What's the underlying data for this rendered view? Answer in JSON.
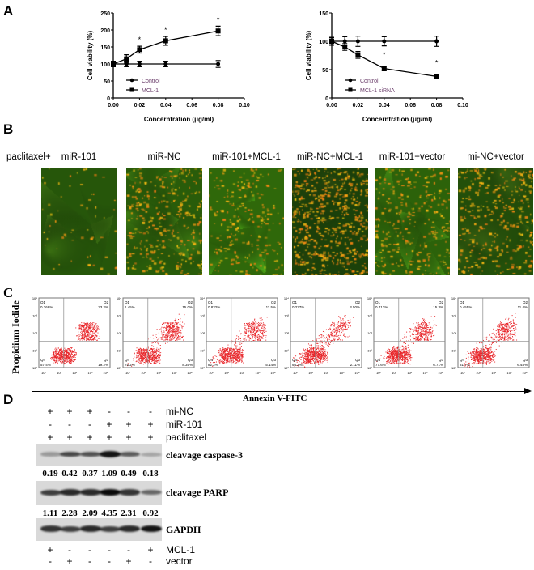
{
  "panels": {
    "a": "A",
    "b": "B",
    "c": "C",
    "d": "D"
  },
  "chart_data": [
    {
      "type": "line",
      "xlabel": "Concerntration (μg/ml)",
      "ylabel": "Cell viability (%)",
      "xlim": [
        0,
        0.1
      ],
      "ylim": [
        0,
        250
      ],
      "xticks": [
        "0.00",
        "0.02",
        "0.04",
        "0.06",
        "0.08",
        "0.10"
      ],
      "yticks": [
        "0",
        "50",
        "100",
        "150",
        "200",
        "250"
      ],
      "x": [
        0,
        0.01,
        0.02,
        0.04,
        0.08
      ],
      "series": [
        {
          "name": "Control",
          "marker": "circle",
          "values": [
            100,
            100,
            100,
            100,
            100
          ],
          "err": [
            8,
            8,
            8,
            8,
            10
          ]
        },
        {
          "name": "MCL-1",
          "marker": "square",
          "values": [
            100,
            115,
            142,
            168,
            197
          ],
          "err": [
            6,
            12,
            10,
            13,
            14
          ]
        }
      ],
      "significance": [
        {
          "x": 0.02,
          "label": "*"
        },
        {
          "x": 0.04,
          "label": "*"
        },
        {
          "x": 0.08,
          "label": "*"
        }
      ],
      "legend": "bottom-left"
    },
    {
      "type": "line",
      "xlabel": "Concerntration (μg/ml)",
      "ylabel": "Cell viability (%)",
      "xlim": [
        0,
        0.1
      ],
      "ylim": [
        0,
        150
      ],
      "xticks": [
        "0.00",
        "0.02",
        "0.04",
        "0.06",
        "0.08",
        "0.10"
      ],
      "yticks": [
        "0",
        "50",
        "100",
        "150"
      ],
      "x": [
        0,
        0.01,
        0.02,
        0.04,
        0.08
      ],
      "series": [
        {
          "name": "Control",
          "marker": "circle",
          "values": [
            100,
            100,
            100,
            100,
            100
          ],
          "err": [
            7,
            8,
            9,
            8,
            9
          ]
        },
        {
          "name": "MCL-1 siRNA",
          "marker": "square",
          "values": [
            100,
            90,
            76,
            52,
            38
          ],
          "err": [
            6,
            6,
            6,
            4,
            4
          ]
        }
      ],
      "significance": [
        {
          "x": 0.04,
          "label": "*"
        },
        {
          "x": 0.08,
          "label": "*"
        }
      ],
      "legend": "bottom-left"
    }
  ],
  "panel_b": {
    "prefix": "paclitaxel+",
    "labels": [
      "miR-101",
      "miR-NC",
      "miR-101+MCL-1",
      "miR-NC+MCL-1",
      "miR-101+vector",
      "mi-NC+vector"
    ],
    "orange_density": [
      0.1,
      0.6,
      0.4,
      1.0,
      0.5,
      0.6
    ],
    "green_level": [
      0.6,
      0.7,
      0.9,
      0.25,
      0.8,
      0.5
    ]
  },
  "panel_c": {
    "ylabel": "Propidium Iodide",
    "xlabel": "Annexin V-FITC",
    "quad_names": [
      "Q1",
      "Q2",
      "Q3",
      "Q4"
    ],
    "plots": [
      {
        "q1": "0.268%",
        "q2": "23.2%",
        "q3": "19.2%",
        "q4": "57.4%"
      },
      {
        "q1": "1.45%",
        "q2": "15.0%",
        "q3": "8.35%",
        "q4": "75.2%"
      },
      {
        "q1": "0.832%",
        "q2": "11.5%",
        "q3": "5.14%",
        "q4": "82.2%"
      },
      {
        "q1": "0.227%",
        "q2": "3.50%",
        "q3": "2.11%",
        "q4": "94.2%"
      },
      {
        "q1": "0.412%",
        "q2": "15.3%",
        "q3": "6.71%",
        "q4": "77.6%"
      },
      {
        "q1": "0.455%",
        "q2": "11.4%",
        "q3": "6.48%",
        "q4": "81.7%"
      }
    ],
    "axis_ticks": [
      "10⁰",
      "10¹",
      "10²",
      "10³",
      "10⁴"
    ]
  },
  "panel_d": {
    "top_rows": [
      {
        "label": "mi-NC",
        "signs": [
          "+",
          "+",
          "+",
          "-",
          "-",
          "-"
        ]
      },
      {
        "label": "miR-101",
        "signs": [
          "-",
          "-",
          "-",
          "+",
          "+",
          "+"
        ]
      },
      {
        "label": "paclitaxel",
        "signs": [
          "+",
          "+",
          "+",
          "+",
          "+",
          "+"
        ]
      }
    ],
    "blots": [
      {
        "name": "cleavage caspase-3",
        "values": [
          "0.19",
          "0.42",
          "0.37",
          "1.09",
          "0.49",
          "0.18"
        ]
      },
      {
        "name": "cleavage PARP",
        "values": [
          "1.11",
          "2.28",
          "2.09",
          "4.35",
          "2.31",
          "0.92"
        ]
      },
      {
        "name": "GAPDH",
        "values": []
      }
    ],
    "bottom_rows": [
      {
        "label": "MCL-1",
        "signs": [
          "+",
          "-",
          "-",
          "-",
          "-",
          "+"
        ]
      },
      {
        "label": "vector",
        "signs": [
          "-",
          "+",
          "-",
          "-",
          "+",
          "-"
        ]
      }
    ]
  }
}
